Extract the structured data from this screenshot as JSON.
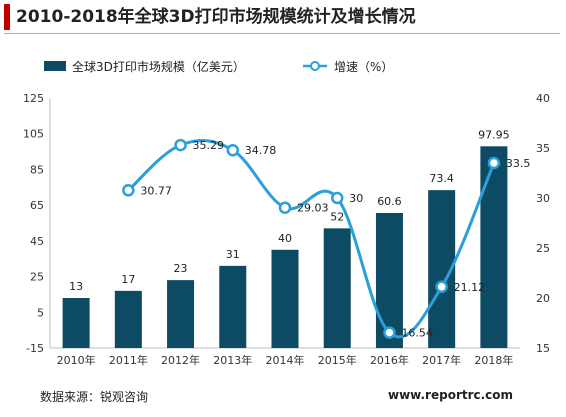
{
  "title": "2010-2018年全球3D打印市场规模统计及增长情况",
  "source": "数据来源：锐观咨询",
  "watermark": "www.reportrc.com",
  "colors": {
    "bar": "#0d4a63",
    "line": "#2a9fd8",
    "accent": "#c00000"
  },
  "chart_data": {
    "type": "bar",
    "categories": [
      "2010年",
      "2011年",
      "2012年",
      "2013年",
      "2014年",
      "2015年",
      "2016年",
      "2017年",
      "2018年"
    ],
    "series": [
      {
        "name": "全球3D打印市场规模（亿美元）",
        "type": "bar",
        "axis": "left",
        "values": [
          13,
          17,
          23,
          31,
          40,
          52,
          60.6,
          73.4,
          97.95
        ],
        "labels": [
          "13",
          "17",
          "23",
          "31",
          "40",
          "52",
          "60.6",
          "73.4",
          "97.95"
        ]
      },
      {
        "name": "增速（%）",
        "type": "line",
        "axis": "right",
        "values": [
          null,
          30.77,
          35.29,
          34.78,
          29.03,
          30,
          16.54,
          21.12,
          33.5
        ],
        "labels": [
          "",
          "30.77",
          "35.29",
          "34.78",
          "29.03",
          "30",
          "16.54",
          "21.12",
          "33.5"
        ]
      }
    ],
    "y_left": {
      "min": -15,
      "max": 125,
      "ticks": [
        "125",
        "105",
        "85",
        "65",
        "45",
        "25",
        "5",
        "-15"
      ]
    },
    "y_right": {
      "min": 15,
      "max": 40,
      "ticks": [
        "40",
        "35",
        "30",
        "25",
        "20",
        "15"
      ]
    },
    "legend_position": "top",
    "grid": false
  }
}
